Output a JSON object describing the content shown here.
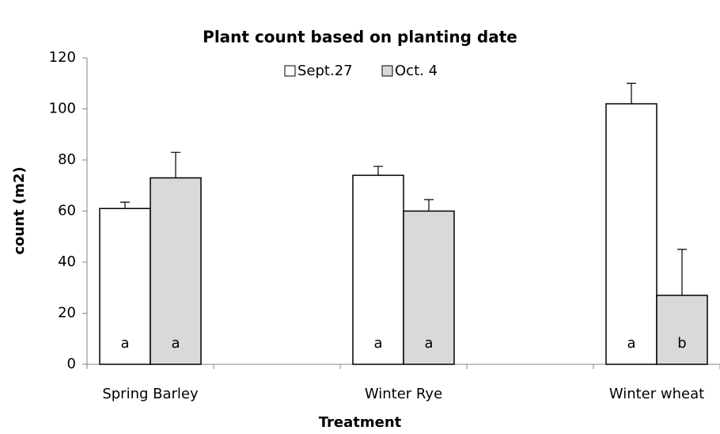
{
  "chart_data": {
    "type": "bar",
    "title": "Plant count based on planting date",
    "x_label": "Treatment",
    "y_label": "count (m2)",
    "categories": [
      "Spring Barley",
      null,
      "Winter Rye",
      null,
      "Winter wheat"
    ],
    "series": [
      {
        "name": "Sept.27",
        "color": "#ffffff",
        "values": [
          61,
          null,
          74,
          null,
          102
        ],
        "errors": [
          2.5,
          null,
          3.5,
          null,
          8
        ],
        "letters": [
          "a",
          null,
          "a",
          null,
          "a"
        ]
      },
      {
        "name": "Oct. 4",
        "color": "#d9d9d9",
        "values": [
          73,
          null,
          60,
          null,
          27
        ],
        "errors": [
          10,
          null,
          4.5,
          null,
          18
        ],
        "letters": [
          "a",
          null,
          "a",
          null,
          "b"
        ]
      }
    ],
    "ylim": [
      0,
      120
    ],
    "yticks": [
      0,
      20,
      40,
      60,
      80,
      100,
      120
    ],
    "grid": false,
    "legend": "top"
  }
}
